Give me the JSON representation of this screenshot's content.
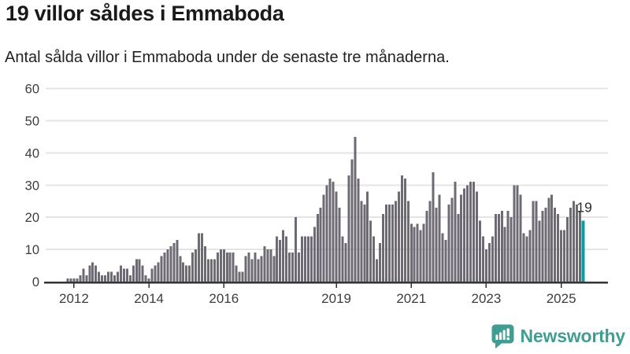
{
  "header": {
    "title": "19 villor såldes i Emmaboda",
    "subtitle": "Antal sålda villor i Emmaboda under de senaste tre månaderna."
  },
  "chart_data": {
    "type": "bar",
    "title": "19 villor såldes i Emmaboda",
    "subtitle": "Antal sålda villor i Emmaboda under de senaste tre månaderna.",
    "frequency": "monthly",
    "x_start": "2011-11",
    "x_end": "2025-08",
    "values": [
      1,
      1,
      1,
      1,
      2,
      4,
      2,
      5,
      6,
      5,
      3,
      2,
      2,
      3,
      3,
      2,
      3,
      5,
      4,
      4,
      2,
      5,
      7,
      7,
      5,
      2,
      1,
      4,
      5,
      6,
      8,
      9,
      10,
      11,
      12,
      13,
      8,
      6,
      5,
      5,
      9,
      10,
      15,
      15,
      11,
      7,
      7,
      7,
      9,
      10,
      10,
      9,
      9,
      9,
      5,
      3,
      3,
      8,
      9,
      7,
      9,
      7,
      8,
      11,
      10,
      10,
      8,
      14,
      13,
      16,
      14,
      9,
      9,
      20,
      9,
      14,
      14,
      14,
      14,
      17,
      21,
      23,
      27,
      30,
      32,
      31,
      28,
      23,
      14,
      12,
      33,
      38,
      45,
      32,
      25,
      24,
      28,
      19,
      14,
      7,
      12,
      21,
      24,
      24,
      24,
      25,
      28,
      33,
      32,
      25,
      18,
      17,
      18,
      16,
      18,
      22,
      25,
      34,
      23,
      27,
      15,
      13,
      24,
      26,
      31,
      21,
      27,
      29,
      30,
      31,
      31,
      28,
      19,
      14,
      10,
      12,
      14,
      21,
      21,
      22,
      17,
      22,
      20,
      30,
      30,
      27,
      15,
      14,
      16,
      25,
      25,
      19,
      22,
      23,
      26,
      27,
      23,
      21,
      16,
      16,
      20,
      23,
      25,
      24,
      22,
      19
    ],
    "highlight_index": 165,
    "highlight_value": 19,
    "highlight_label": "19",
    "y_ticks": [
      0,
      10,
      20,
      30,
      40,
      50,
      60
    ],
    "ylim": [
      0,
      60
    ],
    "x_tick_labels": [
      "2012",
      "2014",
      "2016",
      "2019",
      "2021",
      "2023",
      "2025"
    ],
    "grid": "horizontal",
    "legend": "none",
    "colors": {
      "bar": "#6e6a73",
      "highlight": "#00a0a4",
      "grid": "#e4e4e4",
      "axis": "#333333",
      "tick_text": "#3d3d3d",
      "annotation": "#2e2e2e"
    }
  },
  "footer": {
    "brand": "Newsworthy",
    "brand_color": "#3f9d92"
  }
}
